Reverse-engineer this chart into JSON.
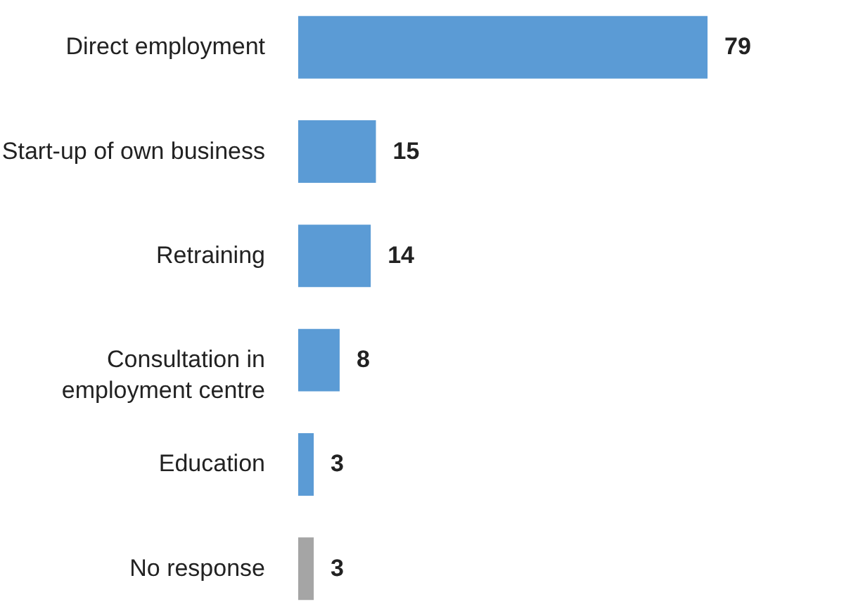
{
  "chart_data": {
    "type": "bar",
    "orientation": "horizontal",
    "categories": [
      "Direct employment",
      "Start-up of own business",
      "Retraining",
      "Consultation in employment centre",
      "Education",
      "No response"
    ],
    "values": [
      79,
      15,
      14,
      8,
      3,
      3
    ],
    "colors": [
      "#5b9bd5",
      "#5b9bd5",
      "#5b9bd5",
      "#5b9bd5",
      "#5b9bd5",
      "#a5a5a5"
    ],
    "data_labels": true
  }
}
